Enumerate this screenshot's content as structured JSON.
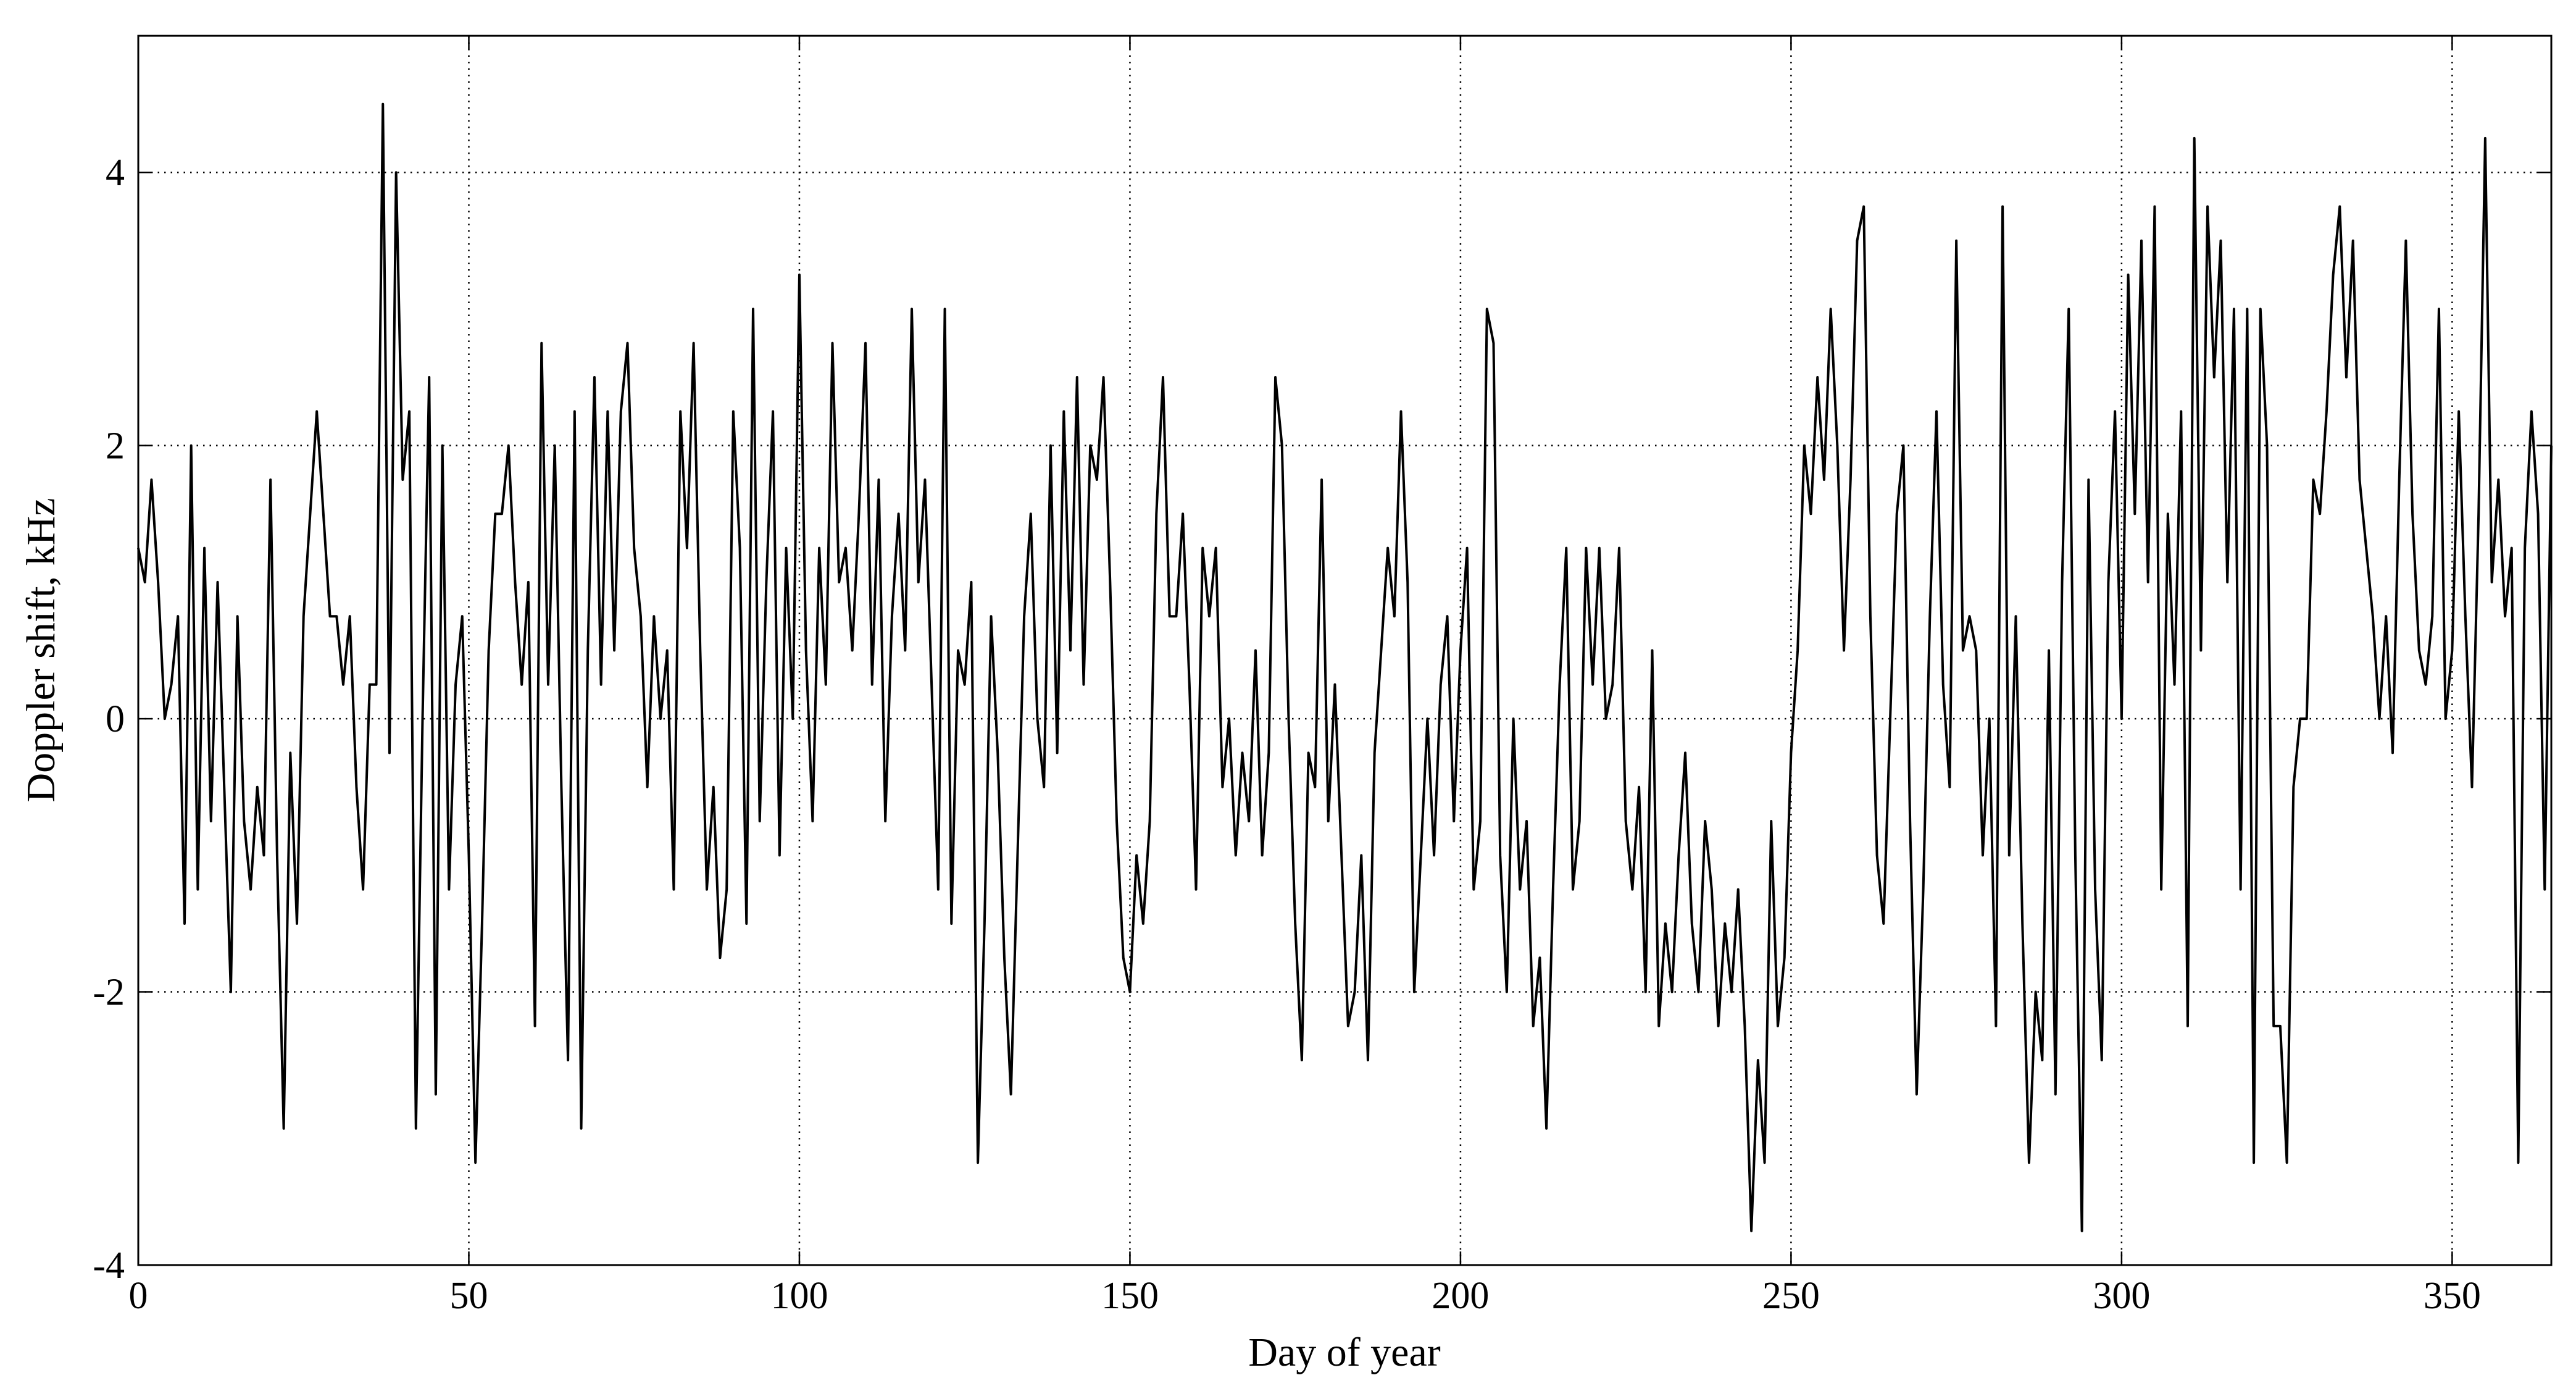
{
  "chart_data": {
    "type": "line",
    "xlabel": "Day of year",
    "ylabel": "Doppler shift, kHz",
    "xlim": [
      0,
      365
    ],
    "ylim": [
      -4,
      5
    ],
    "xticks": [
      0,
      50,
      100,
      150,
      200,
      250,
      300,
      350
    ],
    "yticks": [
      -4,
      -2,
      0,
      2,
      4
    ],
    "grid": true,
    "series": [
      {
        "color": "#000000",
        "x": [
          0,
          1,
          2,
          3,
          4,
          5,
          6,
          7,
          8,
          9,
          10,
          11,
          12,
          13,
          14,
          15,
          16,
          17,
          18,
          19,
          20,
          21,
          22,
          23,
          24,
          25,
          26,
          27,
          28,
          29,
          30,
          31,
          32,
          33,
          34,
          35,
          36,
          37,
          38,
          39,
          40,
          41,
          42,
          43,
          44,
          45,
          46,
          47,
          48,
          49,
          50,
          51,
          52,
          53,
          54,
          55,
          56,
          57,
          58,
          59,
          60,
          61,
          62,
          63,
          64,
          65,
          66,
          67,
          68,
          69,
          70,
          71,
          72,
          73,
          74,
          75,
          76,
          77,
          78,
          79,
          80,
          81,
          82,
          83,
          84,
          85,
          86,
          87,
          88,
          89,
          90,
          91,
          92,
          93,
          94,
          95,
          96,
          97,
          98,
          99,
          100,
          101,
          102,
          103,
          104,
          105,
          106,
          107,
          108,
          109,
          110,
          111,
          112,
          113,
          114,
          115,
          116,
          117,
          118,
          119,
          120,
          121,
          122,
          123,
          124,
          125,
          126,
          127,
          128,
          129,
          130,
          131,
          132,
          133,
          134,
          135,
          136,
          137,
          138,
          139,
          140,
          141,
          142,
          143,
          144,
          145,
          146,
          147,
          148,
          149,
          150,
          151,
          152,
          153,
          154,
          155,
          156,
          157,
          158,
          159,
          160,
          161,
          162,
          163,
          164,
          165,
          166,
          167,
          168,
          169,
          170,
          171,
          172,
          173,
          174,
          175,
          176,
          177,
          178,
          179,
          180,
          181,
          182,
          183,
          184,
          185,
          186,
          187,
          188,
          189,
          190,
          191,
          192,
          193,
          194,
          195,
          196,
          197,
          198,
          199,
          200,
          201,
          202,
          203,
          204,
          205,
          206,
          207,
          208,
          209,
          210,
          211,
          212,
          213,
          214,
          215,
          216,
          217,
          218,
          219,
          220,
          221,
          222,
          223,
          224,
          225,
          226,
          227,
          228,
          229,
          230,
          231,
          232,
          233,
          234,
          235,
          236,
          237,
          238,
          239,
          240,
          241,
          242,
          243,
          244,
          245,
          246,
          247,
          248,
          249,
          250,
          251,
          252,
          253,
          254,
          255,
          256,
          257,
          258,
          259,
          260,
          261,
          262,
          263,
          264,
          265,
          266,
          267,
          268,
          269,
          270,
          271,
          272,
          273,
          274,
          275,
          276,
          277,
          278,
          279,
          280,
          281,
          282,
          283,
          284,
          285,
          286,
          287,
          288,
          289,
          290,
          291,
          292,
          293,
          294,
          295,
          296,
          297,
          298,
          299,
          300,
          301,
          302,
          303,
          304,
          305,
          306,
          307,
          308,
          309,
          310,
          311,
          312,
          313,
          314,
          315,
          316,
          317,
          318,
          319,
          320,
          321,
          322,
          323,
          324,
          325,
          326,
          327,
          328,
          329,
          330,
          331,
          332,
          333,
          334,
          335,
          336,
          337,
          338,
          339,
          340,
          341,
          342,
          343,
          344,
          345,
          346,
          347,
          348,
          349,
          350,
          351,
          352,
          353,
          354,
          355,
          356,
          357,
          358,
          359,
          360,
          361,
          362,
          363,
          364,
          365
        ],
        "values": [
          1.25,
          1,
          1.75,
          1,
          0,
          0.25,
          0.75,
          -1.5,
          2,
          -1.25,
          1.25,
          -0.75,
          1,
          -0.5,
          -2,
          0.75,
          -0.75,
          -1.25,
          -0.5,
          -1,
          1.75,
          -1,
          -3,
          -0.25,
          -1.5,
          0.75,
          1.5,
          2.25,
          1.5,
          0.75,
          0.75,
          0.25,
          0.75,
          -0.5,
          -1.25,
          0.25,
          0.25,
          4.5,
          -0.25,
          4,
          1.75,
          2.25,
          -3,
          0,
          2.5,
          -2.75,
          2,
          -1.25,
          0.25,
          0.75,
          -1,
          -3.25,
          -1.5,
          0.5,
          1.5,
          1.5,
          2,
          1,
          0.25,
          1,
          -2.25,
          2.75,
          0.25,
          2,
          -0.5,
          -2.5,
          2.25,
          -3,
          0.5,
          2.5,
          0.25,
          2.25,
          0.5,
          2.25,
          2.75,
          1.25,
          0.75,
          -0.5,
          0.75,
          0,
          0.5,
          -1.25,
          2.25,
          1.25,
          2.75,
          0.5,
          -1.25,
          -0.5,
          -1.75,
          -1.25,
          2.25,
          1.25,
          -1.5,
          3,
          -0.75,
          1,
          2.25,
          -1,
          1.25,
          0,
          3.25,
          0.5,
          -0.75,
          1.25,
          0.25,
          2.75,
          1,
          1.25,
          0.5,
          1.5,
          2.75,
          0.25,
          1.75,
          -0.75,
          0.75,
          1.5,
          0.5,
          3,
          1,
          1.75,
          0.25,
          -1.25,
          3,
          -1.5,
          0.5,
          0.25,
          1,
          -3.25,
          -1.5,
          0.75,
          -0.25,
          -1.75,
          -2.75,
          -1,
          0.75,
          1.5,
          0,
          -0.5,
          2,
          -0.25,
          2.25,
          0.5,
          2.5,
          0.25,
          2,
          1.75,
          2.5,
          1,
          -0.75,
          -1.75,
          -2,
          -1,
          -1.5,
          -0.75,
          1.5,
          2.5,
          0.75,
          0.75,
          1.5,
          0.25,
          -1.25,
          1.25,
          0.75,
          1.25,
          -0.5,
          0,
          -1,
          -0.25,
          -0.75,
          0.5,
          -1,
          -0.25,
          2.5,
          2,
          0,
          -1.5,
          -2.5,
          -0.25,
          -0.5,
          1.75,
          -0.75,
          0.25,
          -1,
          -2.25,
          -2,
          -1,
          -2.5,
          -0.25,
          0.5,
          1.25,
          0.75,
          2.25,
          1,
          -2,
          -1,
          0,
          -1,
          0.25,
          0.75,
          -0.75,
          0.5,
          1.25,
          -1.25,
          -0.75,
          3,
          2.75,
          -1,
          -2,
          0,
          -1.25,
          -0.75,
          -2.25,
          -1.75,
          -3,
          -1.25,
          0.25,
          1.25,
          -1.25,
          -0.75,
          1.25,
          0.25,
          1.25,
          0,
          0.25,
          1.25,
          -0.75,
          -1.25,
          -0.5,
          -2,
          0.5,
          -2.25,
          -1.5,
          -2,
          -1,
          -0.25,
          -1.5,
          -2,
          -0.75,
          -1.25,
          -2.25,
          -1.5,
          -2,
          -1.25,
          -2.25,
          -3.75,
          -2.5,
          -3.25,
          -0.75,
          -2.25,
          -1.75,
          -0.25,
          0.5,
          2,
          1.5,
          2.5,
          1.75,
          3,
          2,
          0.5,
          1.75,
          3.5,
          3.75,
          0.75,
          -1,
          -1.5,
          0,
          1.5,
          2,
          -0.75,
          -2.75,
          -1.25,
          0.75,
          2.25,
          0.25,
          -0.5,
          3.5,
          0.5,
          0.75,
          0.5,
          -1,
          0,
          -2.25,
          3.75,
          -1,
          0.75,
          -1.5,
          -3.25,
          -2,
          -2.5,
          0.5,
          -2.75,
          1,
          3,
          -1,
          -3.75,
          1.75,
          -1.25,
          -2.5,
          1,
          2.25,
          0,
          3.25,
          1.5,
          3.5,
          1,
          3.75,
          -1.25,
          1.5,
          0.25,
          2.25,
          -2.25,
          4.25,
          0.5,
          3.75,
          2.5,
          3.5,
          1,
          3,
          -1.25,
          3,
          -3.25,
          3,
          2,
          -2.25,
          -2.25,
          -3.25,
          -0.5,
          0,
          0,
          1.75,
          1.5,
          2.25,
          3.25,
          3.75,
          2.5,
          3.5,
          1.75,
          1.25,
          0.75,
          0,
          0.75,
          -0.25,
          1.75,
          3.5,
          1.5,
          0.5,
          0.25,
          0.75,
          3,
          0,
          0.5,
          2.25,
          0.75,
          -0.5,
          1.5,
          4.25,
          1,
          1.75,
          0.75,
          1.25,
          -3.25,
          1.25,
          2.25,
          1.5,
          -1.25,
          2
        ]
      }
    ]
  }
}
